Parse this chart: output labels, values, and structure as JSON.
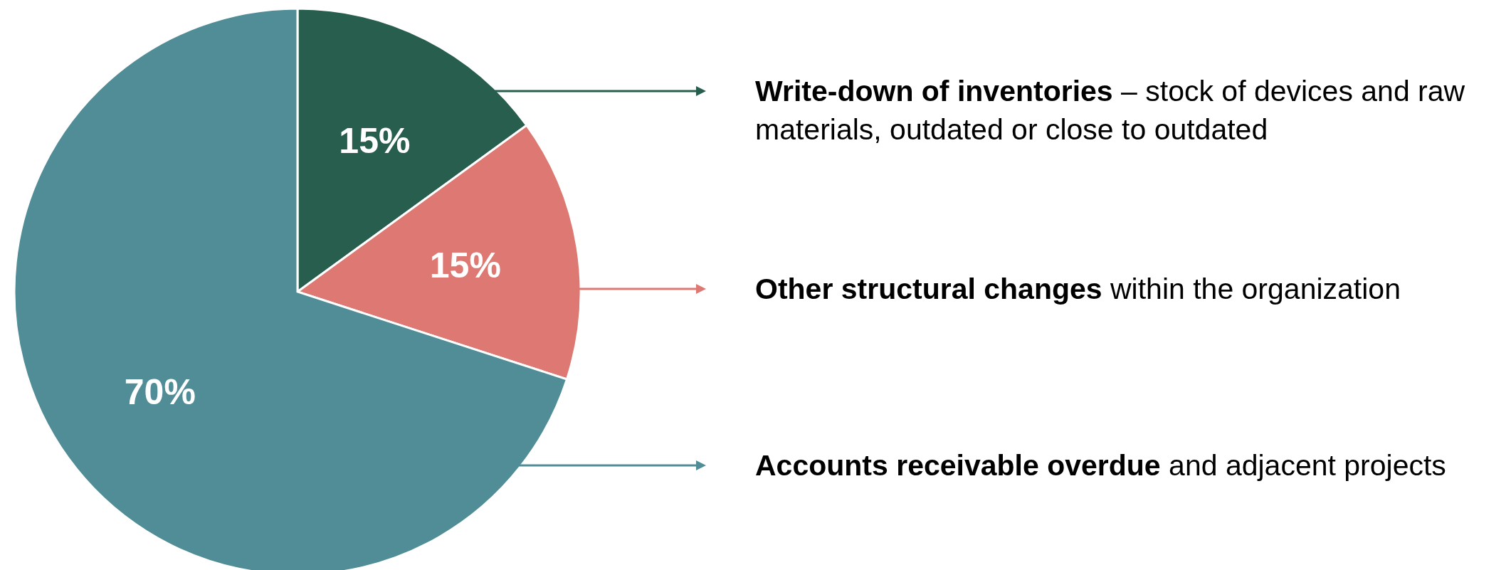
{
  "chart_data": {
    "type": "pie",
    "categories": [
      "Write-down of inventories",
      "Other structural changes",
      "Accounts receivable overdue"
    ],
    "values": [
      15,
      15,
      70
    ],
    "colors": [
      "#275e4e",
      "#dd7872",
      "#508d97"
    ],
    "value_labels": [
      "15%",
      "15%",
      "70%"
    ],
    "legend": "right",
    "annotations": [
      "– stock of devices and raw materials, outdated or close to outdated",
      "within the organization",
      "and adjacent projects"
    ]
  }
}
